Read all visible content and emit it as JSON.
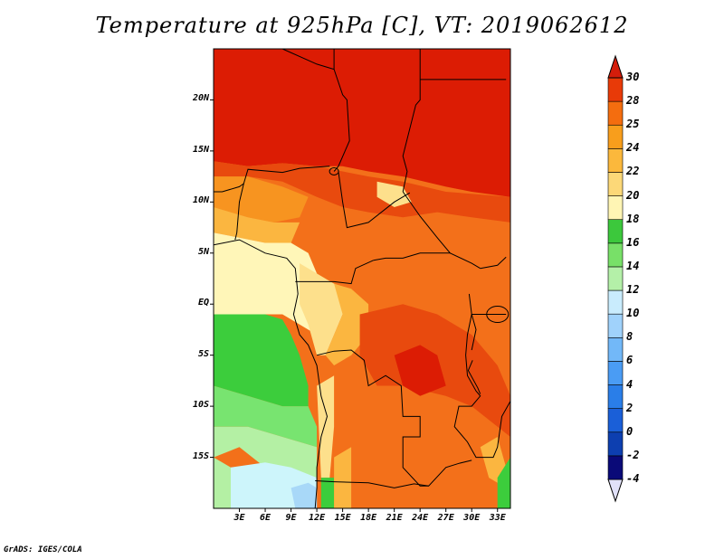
{
  "title": "Temperature at 925hPa [C], VT: 2019062612",
  "credit": "GrADS: IGES/COLA",
  "lat_labels": [
    "20N",
    "15N",
    "10N",
    "5N",
    "EQ",
    "5S",
    "10S",
    "15S"
  ],
  "lat_values": [
    20,
    15,
    10,
    5,
    0,
    -5,
    -10,
    -15
  ],
  "lon_labels": [
    "3E",
    "6E",
    "9E",
    "12E",
    "15E",
    "18E",
    "21E",
    "24E",
    "27E",
    "30E",
    "33E"
  ],
  "lon_values": [
    3,
    6,
    9,
    12,
    15,
    18,
    21,
    24,
    27,
    30,
    33
  ],
  "map_extent": {
    "lon_min": 0,
    "lon_max": 34.5,
    "lat_min": -20,
    "lat_max": 25
  },
  "colorbar": {
    "labels": [
      "30",
      "28",
      "25",
      "24",
      "22",
      "20",
      "18",
      "16",
      "14",
      "12",
      "10",
      "8",
      "6",
      "4",
      "2",
      "0",
      "-2",
      "-4"
    ],
    "bands": [
      {
        "range": "<-4",
        "color": "#e1e1f9"
      },
      {
        "range": "-4 to -2",
        "color": "#0a0a78"
      },
      {
        "range": "-2 to 0",
        "color": "#0d3fb0"
      },
      {
        "range": "0 to 2",
        "color": "#1a5fd8"
      },
      {
        "range": "2 to 4",
        "color": "#2a7ee8"
      },
      {
        "range": "4 to 6",
        "color": "#4a9cf4"
      },
      {
        "range": "6 to 8",
        "color": "#72b8f8"
      },
      {
        "range": "8 to 10",
        "color": "#a0d2fb"
      },
      {
        "range": "10 to 12",
        "color": "#c9ecfd"
      },
      {
        "range": "12 to 14",
        "color": "#b4f0a8"
      },
      {
        "range": "14 to 16",
        "color": "#78e068"
      },
      {
        "range": "16 to 18",
        "color": "#3cc83c"
      },
      {
        "range": "18 to 20",
        "color": "#fff5b4"
      },
      {
        "range": "20 to 22",
        "color": "#fcd878"
      },
      {
        "range": "22 to 24",
        "color": "#fbb83c"
      },
      {
        "range": "24 to 25",
        "color": "#f89e1c"
      },
      {
        "range": "25 to 28",
        "color": "#f46d0f"
      },
      {
        "range": "28 to 30",
        "color": "#e83a08"
      },
      {
        "range": ">30",
        "color": "#d41d0b"
      }
    ]
  },
  "map_colors": {
    "c30": "#dc1c04",
    "c28": "#e84a0e",
    "c25": "#f3701a",
    "c24": "#f79420",
    "c22": "#fbb640",
    "c20": "#fde08c",
    "c18": "#fff6b8",
    "c16": "#3ccd3c",
    "c14": "#78e470",
    "c12": "#b4f0a4",
    "c10": "#cdf5fb",
    "c8": "#a8d8f8",
    "border": "#000000"
  }
}
